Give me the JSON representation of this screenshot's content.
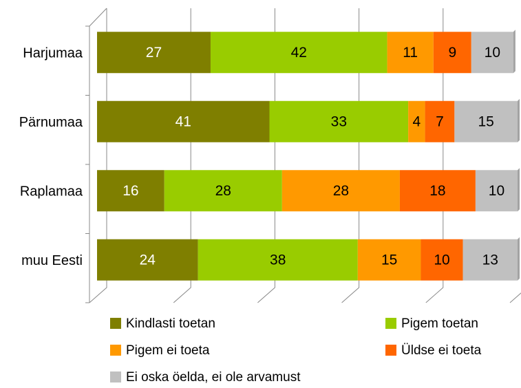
{
  "chart_data": {
    "type": "stacked_bar_horizontal",
    "categories": [
      "Harjumaa",
      "Pärnumaa",
      "Raplamaa",
      "muu Eesti"
    ],
    "series": [
      {
        "name": "Kindlasti toetan",
        "color": "#7f7f00",
        "values": [
          27,
          41,
          16,
          24
        ]
      },
      {
        "name": "Pigem toetan",
        "color": "#99cc00",
        "values": [
          42,
          33,
          28,
          38
        ]
      },
      {
        "name": "Pigem ei toeta",
        "color": "#ff9900",
        "values": [
          11,
          4,
          28,
          15
        ]
      },
      {
        "name": "Üldse ei toeta",
        "color": "#ff6600",
        "values": [
          9,
          7,
          18,
          10
        ]
      },
      {
        "name": "Ei oska öelda, ei ole arvamust",
        "color": "#c0c0c0",
        "values": [
          10,
          15,
          10,
          13
        ]
      }
    ],
    "xlim": [
      0,
      100
    ],
    "xticks": [
      0,
      20,
      40,
      60,
      80,
      100
    ],
    "grid": true
  }
}
